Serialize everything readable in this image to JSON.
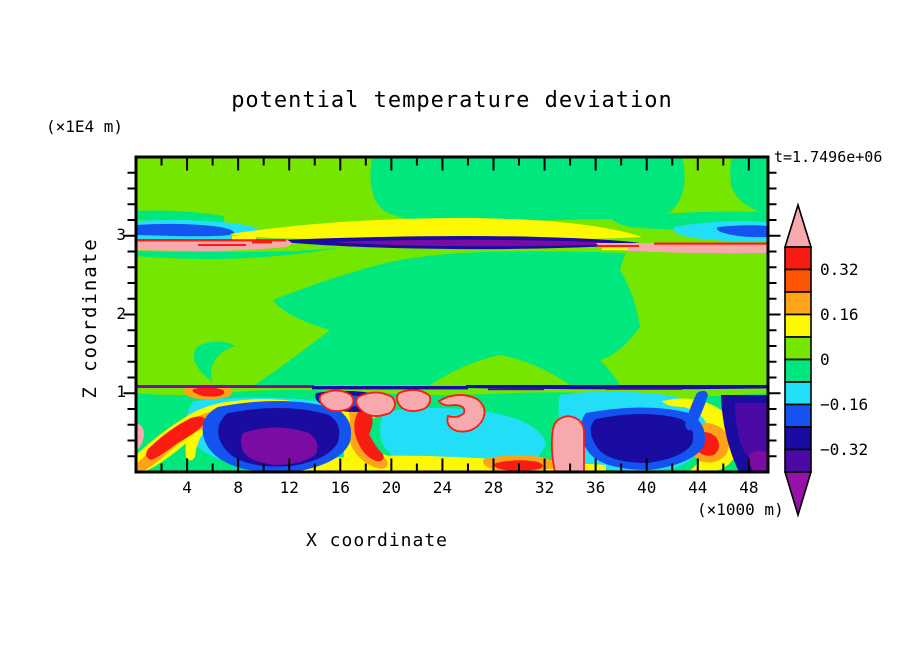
{
  "title": "potential temperature deviation",
  "labels": {
    "top_left_unit": "(×1E4 m)",
    "time": "t=1.7496e+06",
    "x_axis": "X coordinate",
    "x_unit": "(×1000 m)",
    "z_axis": "Z coordinate"
  },
  "axes": {
    "x": {
      "range": [
        0,
        49.5
      ],
      "major_ticks": [
        4,
        8,
        12,
        16,
        20,
        24,
        28,
        32,
        36,
        40,
        44,
        48
      ],
      "minor_step": 2
    },
    "z": {
      "range": [
        0,
        4
      ],
      "major_ticks": [
        1,
        2,
        3
      ],
      "minor_step": 0.2
    }
  },
  "colorbar": {
    "orientation": "vertical",
    "block_colors": [
      "red",
      "orangered",
      "orange",
      "yellow",
      "chartreuse",
      "spring",
      "cyan",
      "blue",
      "navy",
      "indigo"
    ],
    "arrow_top": "pink",
    "arrow_bottom": "purple",
    "labels": [
      {
        "text": "0.32",
        "at_boundary": 1
      },
      {
        "text": "0.16",
        "at_boundary": 3
      },
      {
        "text": "0",
        "at_boundary": 5
      },
      {
        "text": "−0.16",
        "at_boundary": 7
      },
      {
        "text": "−0.32",
        "at_boundary": 9
      }
    ]
  },
  "palette": {
    "pink": "#F8A9AE",
    "red": "#F91C12",
    "orangered": "#FF5500",
    "orange": "#FFA418",
    "yellow": "#FCF900",
    "chartreuse": "#74E600",
    "spring": "#00E87D",
    "cyan": "#22DFF7",
    "blue": "#1453F0",
    "navy": "#1A0CA0",
    "indigo": "#4B0AA5",
    "violet": "#7A0CA4",
    "purple": "#9610AA"
  },
  "chart_data": {
    "type": "heatmap",
    "subtype": "filled_contour",
    "title": "potential temperature deviation",
    "time_annotation": "t=1.7496e+06",
    "xlabel": "X coordinate",
    "x_unit": "×1000 m",
    "x_range": [
      0,
      49.5
    ],
    "x_major_ticks": [
      4,
      8,
      12,
      16,
      20,
      24,
      28,
      32,
      36,
      40,
      44,
      48
    ],
    "ylabel": "Z coordinate",
    "y_unit": "×1E4 m",
    "y_range": [
      0,
      4
    ],
    "y_major_ticks": [
      1,
      2,
      3
    ],
    "grid": false,
    "legend_position": "right-colorbar",
    "contour_interval": 0.08,
    "labeled_levels": [
      0.32,
      0.16,
      0,
      -0.16,
      -0.32
    ],
    "level_bands": [
      {
        "min": 0.4,
        "max": null,
        "color_key": "pink"
      },
      {
        "min": 0.32,
        "max": 0.4,
        "color_key": "red"
      },
      {
        "min": 0.24,
        "max": 0.32,
        "color_key": "orangered"
      },
      {
        "min": 0.16,
        "max": 0.24,
        "color_key": "orange"
      },
      {
        "min": 0.08,
        "max": 0.16,
        "color_key": "yellow"
      },
      {
        "min": 0.0,
        "max": 0.08,
        "color_key": "chartreuse"
      },
      {
        "min": -0.08,
        "max": 0.0,
        "color_key": "spring"
      },
      {
        "min": -0.16,
        "max": -0.08,
        "color_key": "cyan"
      },
      {
        "min": -0.24,
        "max": -0.16,
        "color_key": "blue"
      },
      {
        "min": -0.32,
        "max": -0.24,
        "color_key": "navy"
      },
      {
        "min": -0.4,
        "max": -0.32,
        "color_key": "indigo"
      },
      {
        "min": null,
        "max": -0.4,
        "color_key": "purple"
      }
    ],
    "features": [
      "Bulk of domain (z ≈ 1–4 ×1E4 m) is near zero: 0 to +0.08 band (chartreuse) with a broad −0.08 to 0 region (spring green) in the centre and upper middle",
      "Sharp stratified layer at z ≈ 2.9–3.1: full-width warm sheet > +0.40 (pink) with thin +0.32–0.40 filaments (red), a positive +0.08–0.16 lens (yellow) above a strong negative lens < −0.32 (navy/violet) in the centre, and −0.08 to −0.24 pockets (cyan/blue) at both side walls",
      "Turbulent mixed layer below z ≈ 1 with Kelvin–Helmholtz billows and plumes spanning the full range from < −0.40 (violet/purple vortex cores at x≈2–8, 34–42, 47–49.5) to > +0.40 (pink updraft caps at x≈16–28 and pink column at x≈33–35)",
      "Thin multi-colored interface line at z ≈ 1 separating quiescent interior from turbulence"
    ]
  }
}
